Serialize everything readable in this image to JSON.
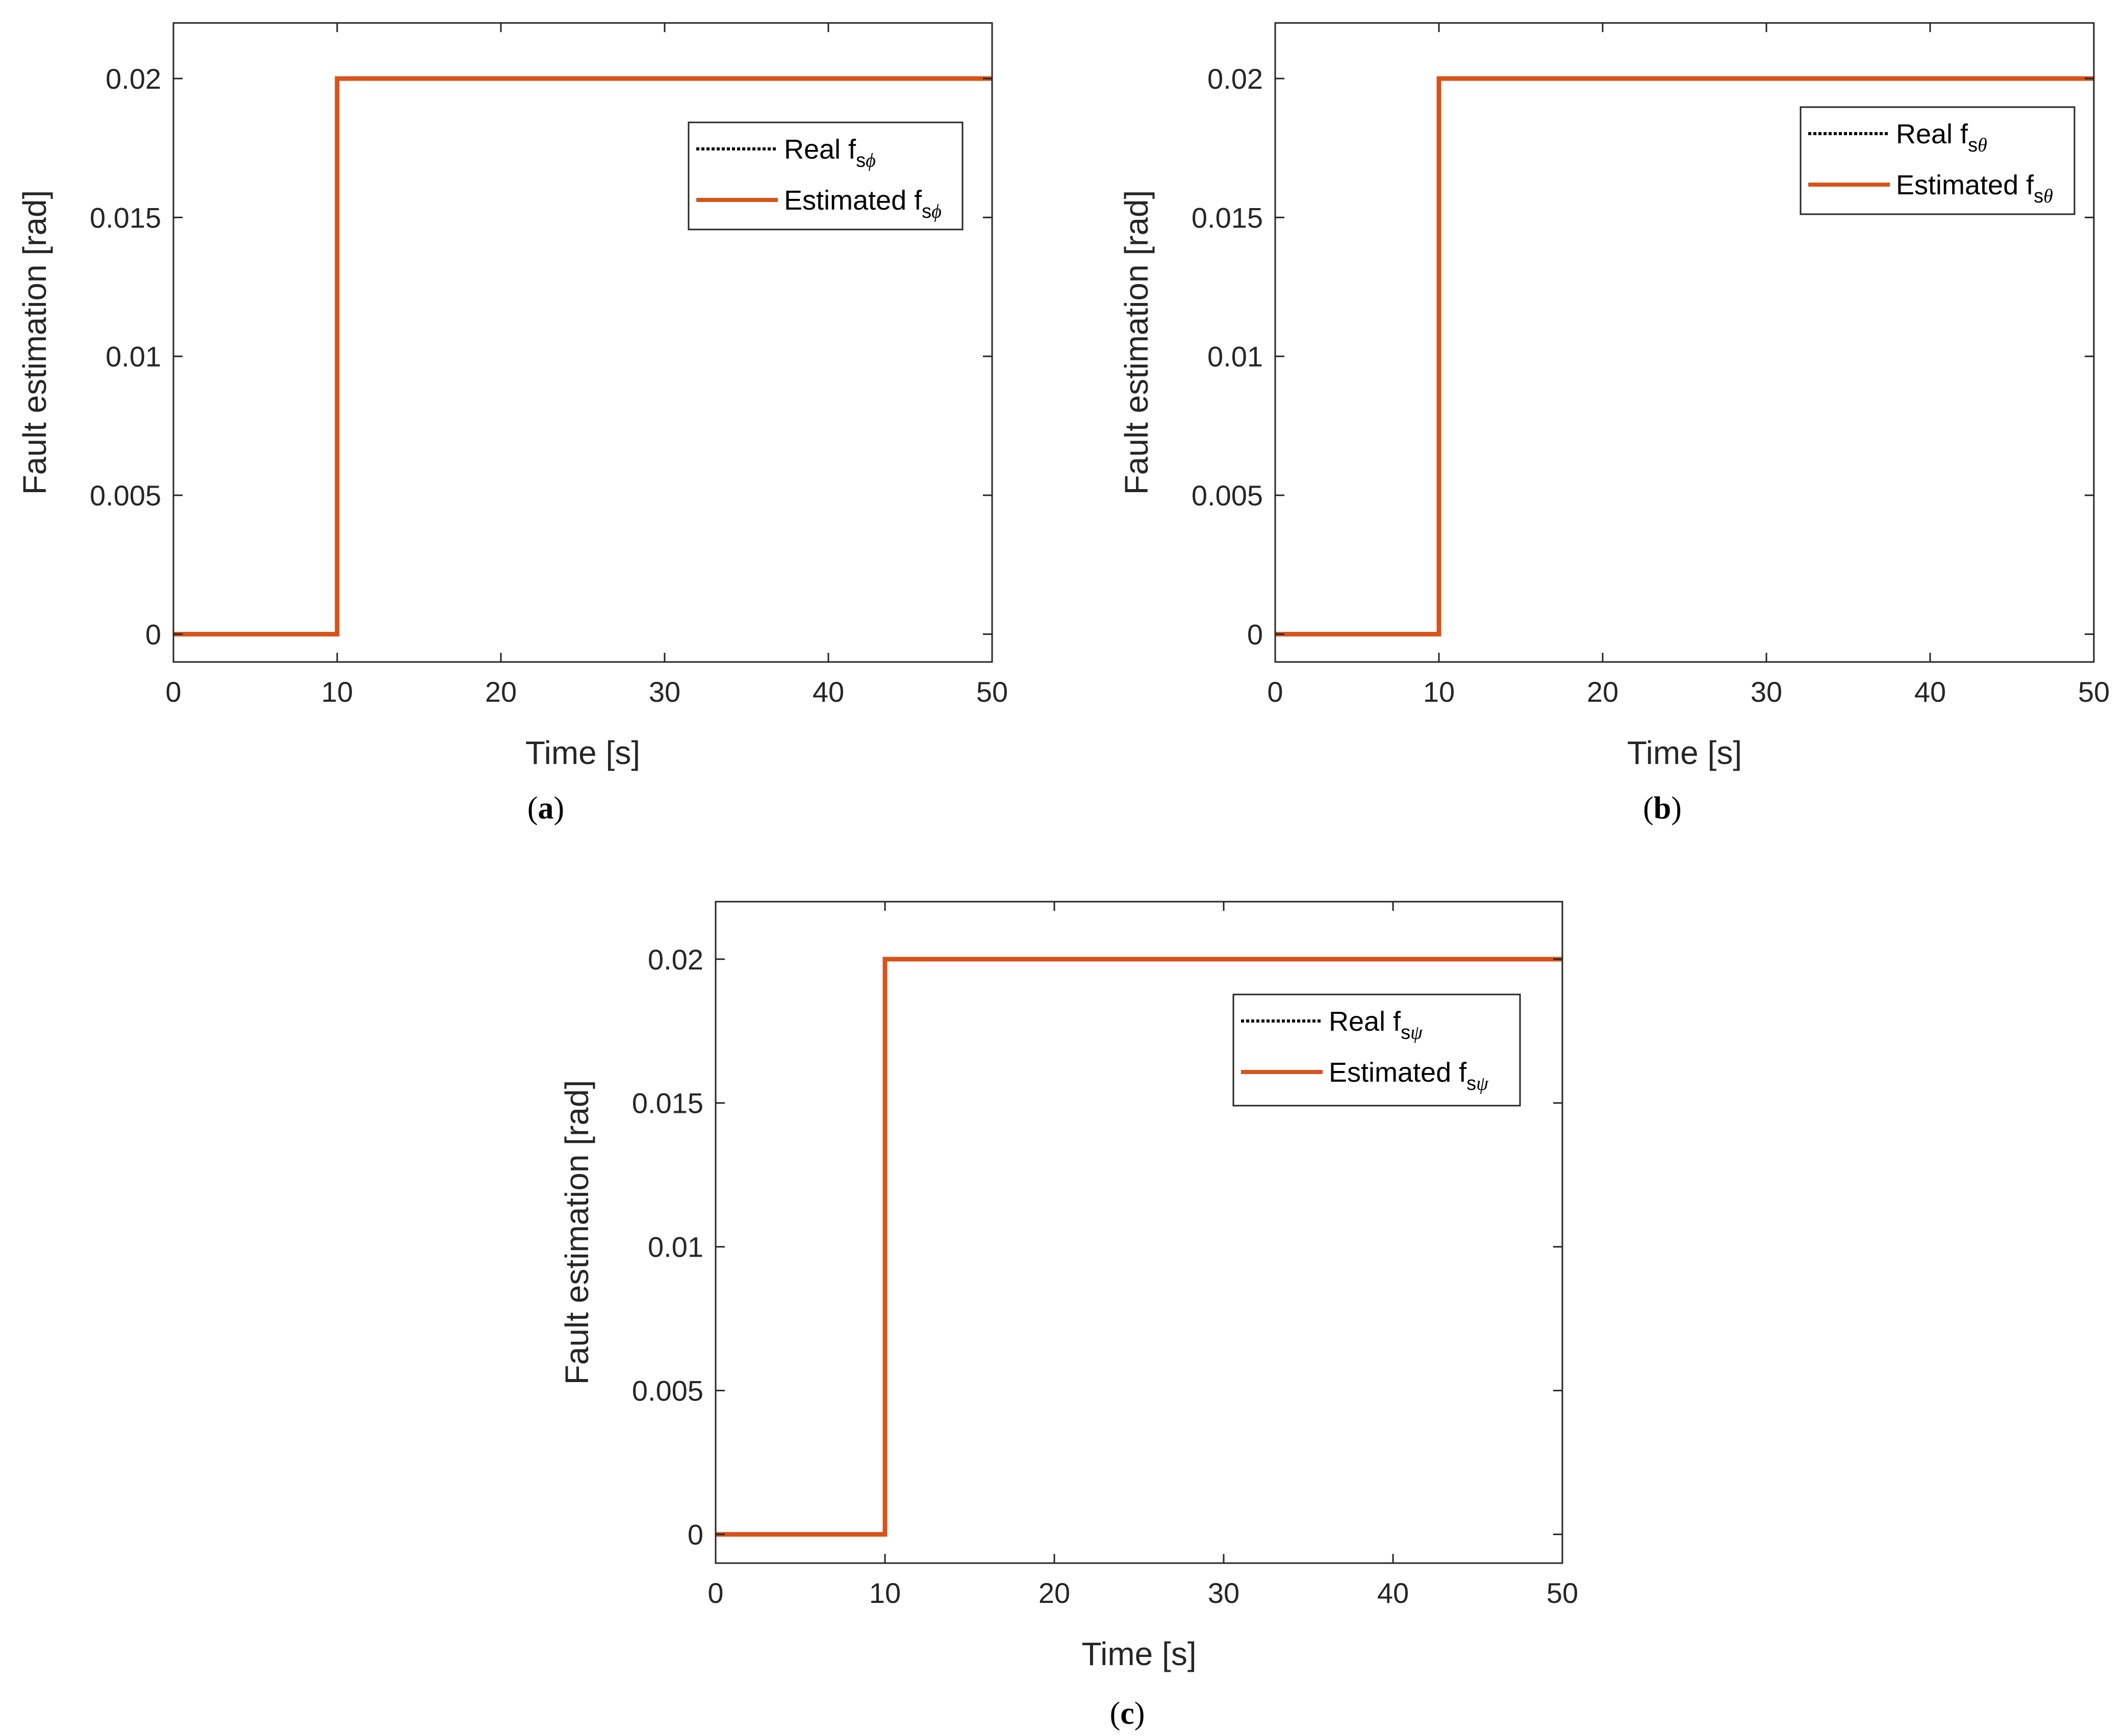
{
  "colors": {
    "real": "#000000",
    "estimated": "#d95319",
    "axes": "#262626"
  },
  "chart_data": [
    {
      "type": "line",
      "caption": "a",
      "xlabel": "Time [s]",
      "ylabel": "Fault estimation [rad]",
      "xlim": [
        0,
        50
      ],
      "ylim": [
        -0.001,
        0.022
      ],
      "xticks": [
        0,
        10,
        20,
        30,
        40,
        50
      ],
      "yticks": [
        0,
        0.005,
        0.01,
        0.015,
        0.02
      ],
      "xtick_labels": [
        "0",
        "10",
        "20",
        "30",
        "40",
        "50"
      ],
      "ytick_labels": [
        "0",
        "0.005",
        "0.01",
        "0.015",
        "0.02"
      ],
      "grid": false,
      "legend_position": "upper-right",
      "series": [
        {
          "name": "Real f",
          "subscript": "s",
          "greek": "ϕ",
          "style": "dotted",
          "x": [
            0,
            10,
            10,
            50
          ],
          "y": [
            0,
            0,
            0.02,
            0.02
          ]
        },
        {
          "name": "Estimated f",
          "subscript": "s",
          "greek": "ϕ",
          "style": "solid",
          "x": [
            0,
            10,
            10,
            50
          ],
          "y": [
            0,
            0,
            0.02,
            0.02
          ]
        }
      ]
    },
    {
      "type": "line",
      "caption": "b",
      "xlabel": "Time [s]",
      "ylabel": "Fault estimation [rad]",
      "xlim": [
        0,
        50
      ],
      "ylim": [
        -0.001,
        0.022
      ],
      "xticks": [
        0,
        10,
        20,
        30,
        40,
        50
      ],
      "yticks": [
        0,
        0.005,
        0.01,
        0.015,
        0.02
      ],
      "xtick_labels": [
        "0",
        "10",
        "20",
        "30",
        "40",
        "50"
      ],
      "ytick_labels": [
        "0",
        "0.005",
        "0.01",
        "0.015",
        "0.02"
      ],
      "grid": false,
      "legend_position": "upper-right",
      "series": [
        {
          "name": "Real f",
          "subscript": "s",
          "greek": "θ",
          "style": "dotted",
          "x": [
            0,
            10,
            10,
            50
          ],
          "y": [
            0,
            0,
            0.02,
            0.02
          ]
        },
        {
          "name": "Estimated f",
          "subscript": "s",
          "greek": "θ",
          "style": "solid",
          "x": [
            0,
            10,
            10,
            50
          ],
          "y": [
            0,
            0,
            0.02,
            0.02
          ]
        }
      ]
    },
    {
      "type": "line",
      "caption": "c",
      "xlabel": "Time [s]",
      "ylabel": "Fault estimation [rad]",
      "xlim": [
        0,
        50
      ],
      "ylim": [
        -0.001,
        0.022
      ],
      "xticks": [
        0,
        10,
        20,
        30,
        40,
        50
      ],
      "yticks": [
        0,
        0.005,
        0.01,
        0.015,
        0.02
      ],
      "xtick_labels": [
        "0",
        "10",
        "20",
        "30",
        "40",
        "50"
      ],
      "ytick_labels": [
        "0",
        "0.005",
        "0.01",
        "0.015",
        "0.02"
      ],
      "grid": false,
      "legend_position": "upper-right",
      "series": [
        {
          "name": "Real f",
          "subscript": "s",
          "greek": "ψ",
          "style": "dotted",
          "x": [
            0,
            10,
            10,
            50
          ],
          "y": [
            0,
            0,
            0.02,
            0.02
          ]
        },
        {
          "name": "Estimated f",
          "subscript": "s",
          "greek": "ψ",
          "style": "solid",
          "x": [
            0,
            10,
            10,
            50
          ],
          "y": [
            0,
            0,
            0.02,
            0.02
          ]
        }
      ]
    }
  ]
}
